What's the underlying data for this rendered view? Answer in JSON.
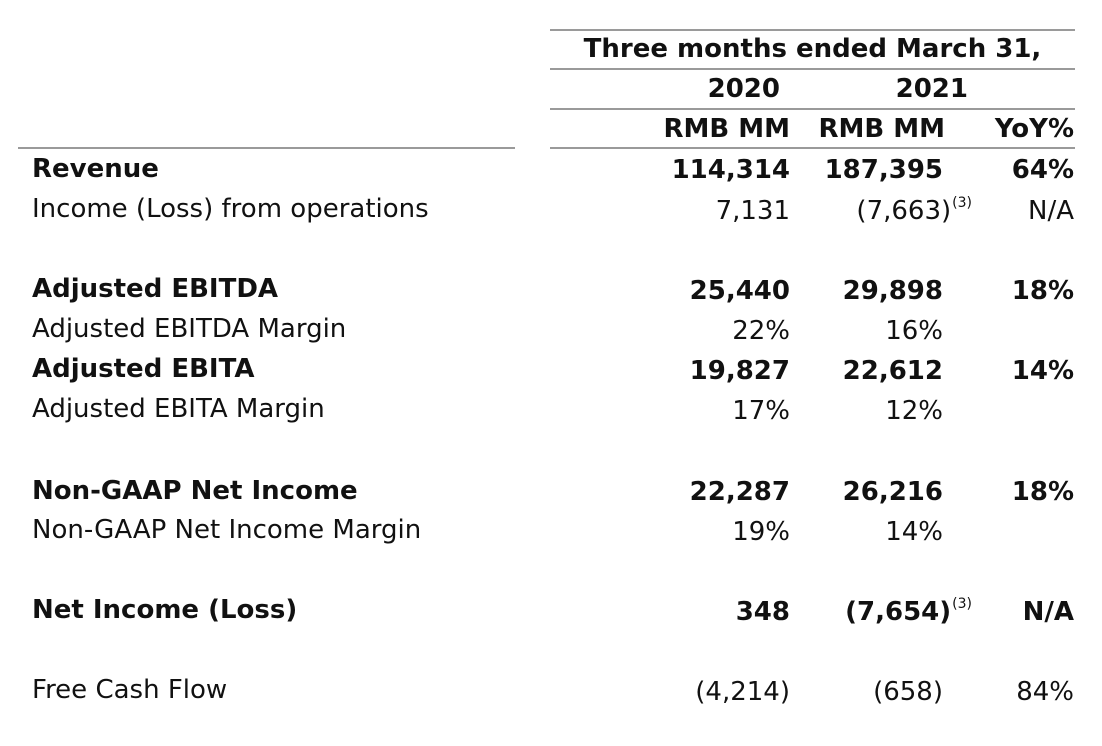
{
  "header": {
    "period": "Three months ended March 31,",
    "years": [
      "2020",
      "2021"
    ],
    "units": [
      "RMB MM",
      "RMB MM"
    ],
    "yoy": "YoY%"
  },
  "rows": [
    {
      "label": "Revenue",
      "v2020": "114,314",
      "v2021": "187,395",
      "v2021_note": "",
      "yoy": "64%"
    },
    {
      "label": "Income (Loss) from operations",
      "v2020": "7,131",
      "v2021": "(7,663)",
      "v2021_note": "(3)",
      "yoy": "N/A"
    },
    {
      "label": "Adjusted EBITDA",
      "v2020": "25,440",
      "v2021": "29,898",
      "v2021_note": "",
      "yoy": "18%"
    },
    {
      "label": "Adjusted EBITDA Margin",
      "v2020": "22%",
      "v2021": "16%",
      "v2021_note": "",
      "yoy": ""
    },
    {
      "label": "Adjusted EBITA",
      "v2020": "19,827",
      "v2021": "22,612",
      "v2021_note": "",
      "yoy": "14%"
    },
    {
      "label": "Adjusted EBITA Margin",
      "v2020": "17%",
      "v2021": "12%",
      "v2021_note": "",
      "yoy": ""
    },
    {
      "label": "Non-GAAP Net Income",
      "v2020": "22,287",
      "v2021": "26,216",
      "v2021_note": "",
      "yoy": "18%"
    },
    {
      "label": "Non-GAAP Net Income Margin",
      "v2020": "19%",
      "v2021": "14%",
      "v2021_note": "",
      "yoy": ""
    },
    {
      "label": "Net Income (Loss)",
      "v2020": "348",
      "v2021": "(7,654)",
      "v2021_note": "(3)",
      "yoy": "N/A"
    },
    {
      "label": "Free Cash Flow",
      "v2020": "(4,214)",
      "v2021": "(658)",
      "v2021_note": "",
      "yoy": "84%"
    }
  ]
}
